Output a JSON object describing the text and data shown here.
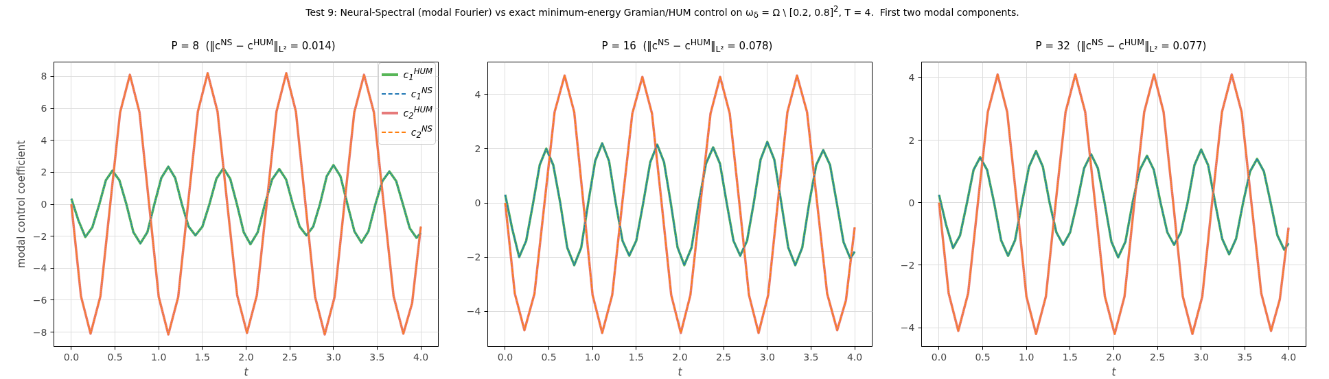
{
  "chart_data": [
    {
      "type": "line",
      "title": "P = 8  (‖c$^{NS}$ − c$^{HUM}$‖$_{L²}$ = 0.014)",
      "xlabel": "t",
      "ylabel": "modal control coefficient",
      "annotations": [
        "Test 9: Neural-Spectral (modal Fourier) vs exact minimum-energy Gramian/HUM control on ω$_{δ}$ = Ω \\ [0.2, 0.8]$^{2}$, T = 4.  First two modal components."
      ],
      "xlim": [
        -0.2,
        4.2
      ],
      "xticks": [
        {
          "value": 0,
          "label": "0.0"
        },
        0.5,
        {
          "value": 1,
          "label": "1.0"
        },
        1.5,
        {
          "value": 2,
          "label": "2.0"
        },
        2.5,
        {
          "value": 3,
          "label": "3.0"
        },
        3.5,
        {
          "value": 4,
          "label": "4.0"
        }
      ],
      "ylim": [
        -8.9,
        8.9
      ],
      "yticks": [
        -8,
        -6,
        -4,
        -2,
        0,
        2,
        4,
        6,
        8
      ],
      "grid": true,
      "legend": "top right",
      "series": [
        {
          "name": "c$_{1}$$^{HUM}$",
          "color": "#58b658",
          "line_style": "solid",
          "x": [
            0,
            0.08,
            0.16,
            0.24,
            0.32,
            0.395,
            0.47,
            0.55,
            0.63,
            0.71,
            0.79,
            0.87,
            0.95,
            1.03,
            1.11,
            1.188,
            1.265,
            1.343,
            1.42,
            1.5,
            1.58,
            1.66,
            1.74,
            1.818,
            1.895,
            1.973,
            2.05,
            2.133,
            2.215,
            2.298,
            2.38,
            2.458,
            2.535,
            2.613,
            2.69,
            2.768,
            2.845,
            2.923,
            3.0,
            3.08,
            3.16,
            3.24,
            3.32,
            3.4,
            3.48,
            3.56,
            3.64,
            3.718,
            3.795,
            3.873,
            3.95,
            4.0
          ],
          "values": [
            0.35,
            -1.0,
            -2.05,
            -1.45,
            0,
            1.5,
            2.1,
            1.5,
            0,
            -1.75,
            -2.45,
            -1.75,
            0,
            1.65,
            2.35,
            1.65,
            0,
            -1.4,
            -1.95,
            -1.4,
            0,
            1.6,
            2.25,
            1.6,
            0,
            -1.75,
            -2.5,
            -1.75,
            0,
            1.55,
            2.2,
            1.55,
            0,
            -1.4,
            -1.95,
            -1.4,
            0,
            1.75,
            2.45,
            1.75,
            0,
            -1.7,
            -2.4,
            -1.7,
            0,
            1.45,
            2.05,
            1.45,
            0,
            -1.5,
            -2.1,
            -1.8
          ]
        },
        {
          "name": "c$_{1}$$^{NS}$",
          "color": "#1f77b4",
          "line_style": "dashed",
          "x": [
            0,
            0.08,
            0.16,
            0.24,
            0.32,
            0.395,
            0.47,
            0.55,
            0.63,
            0.71,
            0.79,
            0.87,
            0.95,
            1.03,
            1.11,
            1.188,
            1.265,
            1.343,
            1.42,
            1.5,
            1.58,
            1.66,
            1.74,
            1.818,
            1.895,
            1.973,
            2.05,
            2.133,
            2.215,
            2.298,
            2.38,
            2.458,
            2.535,
            2.613,
            2.69,
            2.768,
            2.845,
            2.923,
            3.0,
            3.08,
            3.16,
            3.24,
            3.32,
            3.4,
            3.48,
            3.56,
            3.64,
            3.718,
            3.795,
            3.873,
            3.95,
            4.0
          ],
          "values": [
            0.35,
            -1.0,
            -2.05,
            -1.45,
            0,
            1.5,
            2.1,
            1.5,
            0,
            -1.75,
            -2.45,
            -1.75,
            0,
            1.65,
            2.35,
            1.65,
            0,
            -1.4,
            -1.95,
            -1.4,
            0,
            1.6,
            2.25,
            1.6,
            0,
            -1.75,
            -2.5,
            -1.75,
            0,
            1.55,
            2.2,
            1.55,
            0,
            -1.4,
            -1.95,
            -1.4,
            0,
            1.75,
            2.45,
            1.75,
            0,
            -1.7,
            -2.4,
            -1.7,
            0,
            1.45,
            2.05,
            1.45,
            0,
            -1.5,
            -2.1,
            -1.8
          ]
        },
        {
          "name": "c$_{2}$$^{HUM}$",
          "color": "#e67a7a",
          "line_style": "solid",
          "x": [
            0,
            0.11,
            0.22,
            0.333,
            0.445,
            0.558,
            0.67,
            0.78,
            0.89,
            1.0,
            1.11,
            1.223,
            1.335,
            1.448,
            1.56,
            1.673,
            1.785,
            1.898,
            2.01,
            2.123,
            2.235,
            2.348,
            2.46,
            2.57,
            2.68,
            2.79,
            2.9,
            3.013,
            3.125,
            3.238,
            3.35,
            3.463,
            3.575,
            3.688,
            3.8,
            3.9,
            4.0
          ],
          "values": [
            0,
            -5.75,
            -8.1,
            -5.75,
            0,
            5.75,
            8.1,
            5.75,
            0,
            -5.8,
            -8.15,
            -5.8,
            0,
            5.8,
            8.2,
            5.8,
            0,
            -5.7,
            -8.05,
            -5.7,
            0,
            5.8,
            8.2,
            5.8,
            0,
            -5.8,
            -8.15,
            -5.8,
            0,
            5.75,
            8.1,
            5.75,
            0,
            -5.75,
            -8.1,
            -6.2,
            -1.4
          ]
        },
        {
          "name": "c$_{2}$$^{NS}$",
          "color": "#ff7f0e",
          "line_style": "dashed",
          "x": [
            0,
            0.11,
            0.22,
            0.333,
            0.445,
            0.558,
            0.67,
            0.78,
            0.89,
            1.0,
            1.11,
            1.223,
            1.335,
            1.448,
            1.56,
            1.673,
            1.785,
            1.898,
            2.01,
            2.123,
            2.235,
            2.348,
            2.46,
            2.57,
            2.68,
            2.79,
            2.9,
            3.013,
            3.125,
            3.238,
            3.35,
            3.463,
            3.575,
            3.688,
            3.8,
            3.9,
            4.0
          ],
          "values": [
            0,
            -5.75,
            -8.1,
            -5.75,
            0,
            5.75,
            8.1,
            5.75,
            0,
            -5.8,
            -8.15,
            -5.8,
            0,
            5.8,
            8.2,
            5.8,
            0,
            -5.7,
            -8.05,
            -5.7,
            0,
            5.8,
            8.2,
            5.8,
            0,
            -5.8,
            -8.15,
            -5.8,
            0,
            5.75,
            8.1,
            5.75,
            0,
            -5.75,
            -8.1,
            -6.2,
            -1.4
          ]
        }
      ]
    },
    {
      "type": "line",
      "title": "P = 16  (‖c$^{NS}$ − c$^{HUM}$‖$_{L²}$ = 0.078)",
      "xlabel": "t",
      "xlim": [
        -0.2,
        4.2
      ],
      "xticks": [
        {
          "value": 0,
          "label": "0.0"
        },
        0.5,
        {
          "value": 1,
          "label": "1.0"
        },
        1.5,
        {
          "value": 2,
          "label": "2.0"
        },
        2.5,
        {
          "value": 3,
          "label": "3.0"
        },
        3.5,
        {
          "value": 4,
          "label": "4.0"
        }
      ],
      "ylim": [
        -5.3,
        5.2
      ],
      "yticks": [
        -4,
        -2,
        0,
        2,
        4
      ],
      "grid": true,
      "series": [
        {
          "color": "#58b658",
          "line_style": "solid",
          "x": [
            0,
            0.08,
            0.16,
            0.24,
            0.32,
            0.395,
            0.47,
            0.55,
            0.63,
            0.71,
            0.79,
            0.87,
            0.95,
            1.03,
            1.11,
            1.188,
            1.265,
            1.343,
            1.42,
            1.5,
            1.58,
            1.66,
            1.74,
            1.818,
            1.895,
            1.973,
            2.05,
            2.133,
            2.215,
            2.298,
            2.38,
            2.458,
            2.535,
            2.613,
            2.69,
            2.768,
            2.845,
            2.923,
            3.0,
            3.08,
            3.16,
            3.24,
            3.32,
            3.4,
            3.48,
            3.56,
            3.64,
            3.718,
            3.795,
            3.873,
            3.95,
            4.0
          ],
          "values": [
            0.3,
            -0.95,
            -2.0,
            -1.4,
            0,
            1.4,
            2.0,
            1.4,
            0,
            -1.65,
            -2.3,
            -1.65,
            0,
            1.55,
            2.2,
            1.55,
            0,
            -1.4,
            -1.95,
            -1.4,
            0,
            1.5,
            2.15,
            1.5,
            0,
            -1.65,
            -2.3,
            -1.65,
            0,
            1.45,
            2.05,
            1.45,
            0,
            -1.4,
            -1.95,
            -1.4,
            0,
            1.6,
            2.25,
            1.6,
            0,
            -1.65,
            -2.3,
            -1.65,
            0,
            1.4,
            1.95,
            1.4,
            0,
            -1.45,
            -2.05,
            -1.8
          ]
        },
        {
          "color": "#1f77b4",
          "line_style": "dashed",
          "x": [
            0,
            0.08,
            0.16,
            0.24,
            0.32,
            0.395,
            0.47,
            0.55,
            0.63,
            0.71,
            0.79,
            0.87,
            0.95,
            1.03,
            1.11,
            1.188,
            1.265,
            1.343,
            1.42,
            1.5,
            1.58,
            1.66,
            1.74,
            1.818,
            1.895,
            1.973,
            2.05,
            2.133,
            2.215,
            2.298,
            2.38,
            2.458,
            2.535,
            2.613,
            2.69,
            2.768,
            2.845,
            2.923,
            3.0,
            3.08,
            3.16,
            3.24,
            3.32,
            3.4,
            3.48,
            3.56,
            3.64,
            3.718,
            3.795,
            3.873,
            3.95,
            4.0
          ],
          "values": [
            0.3,
            -0.95,
            -2.0,
            -1.4,
            0,
            1.4,
            2.0,
            1.4,
            0,
            -1.65,
            -2.3,
            -1.65,
            0,
            1.55,
            2.2,
            1.55,
            0,
            -1.4,
            -1.95,
            -1.4,
            0,
            1.5,
            2.15,
            1.5,
            0,
            -1.65,
            -2.3,
            -1.65,
            0,
            1.45,
            2.05,
            1.45,
            0,
            -1.4,
            -1.95,
            -1.4,
            0,
            1.6,
            2.25,
            1.6,
            0,
            -1.65,
            -2.3,
            -1.65,
            0,
            1.4,
            1.95,
            1.4,
            0,
            -1.45,
            -2.05,
            -1.8
          ]
        },
        {
          "color": "#e67a7a",
          "line_style": "solid",
          "x": [
            0,
            0.11,
            0.22,
            0.335,
            0.45,
            0.565,
            0.68,
            0.79,
            0.895,
            1.0,
            1.11,
            1.225,
            1.34,
            1.455,
            1.57,
            1.68,
            1.79,
            1.9,
            2.01,
            2.12,
            2.235,
            2.35,
            2.46,
            2.57,
            2.68,
            2.79,
            2.9,
            3.01,
            3.12,
            3.23,
            3.34,
            3.455,
            3.57,
            3.685,
            3.8,
            3.9,
            4.0
          ],
          "values": [
            0,
            -3.35,
            -4.7,
            -3.35,
            0,
            3.35,
            4.7,
            3.35,
            0,
            -3.4,
            -4.8,
            -3.4,
            0,
            3.3,
            4.65,
            3.3,
            0,
            -3.4,
            -4.8,
            -3.4,
            0,
            3.3,
            4.65,
            3.3,
            0,
            -3.4,
            -4.8,
            -3.4,
            0,
            3.35,
            4.7,
            3.35,
            0,
            -3.35,
            -4.7,
            -3.6,
            -0.9
          ]
        },
        {
          "color": "#ff7f0e",
          "line_style": "dashed",
          "x": [
            0,
            0.11,
            0.22,
            0.335,
            0.45,
            0.565,
            0.68,
            0.79,
            0.895,
            1.0,
            1.11,
            1.225,
            1.34,
            1.455,
            1.57,
            1.68,
            1.79,
            1.9,
            2.01,
            2.12,
            2.235,
            2.35,
            2.46,
            2.57,
            2.68,
            2.79,
            2.9,
            3.01,
            3.12,
            3.23,
            3.34,
            3.455,
            3.57,
            3.685,
            3.8,
            3.9,
            4.0
          ],
          "values": [
            0,
            -3.35,
            -4.7,
            -3.35,
            0,
            3.35,
            4.7,
            3.35,
            0,
            -3.4,
            -4.8,
            -3.4,
            0,
            3.3,
            4.65,
            3.3,
            0,
            -3.4,
            -4.8,
            -3.4,
            0,
            3.3,
            4.65,
            3.3,
            0,
            -3.4,
            -4.8,
            -3.4,
            0,
            3.35,
            4.7,
            3.35,
            0,
            -3.35,
            -4.7,
            -3.6,
            -0.9
          ]
        }
      ]
    },
    {
      "type": "line",
      "title": "P = 32  (‖c$^{NS}$ − c$^{HUM}$‖$_{L²}$ = 0.077)",
      "xlabel": "t",
      "xlim": [
        -0.2,
        4.2
      ],
      "xticks": [
        {
          "value": 0,
          "label": "0.0"
        },
        0.5,
        {
          "value": 1,
          "label": "1.0"
        },
        1.5,
        {
          "value": 2,
          "label": "2.0"
        },
        2.5,
        {
          "value": 3,
          "label": "3.0"
        },
        3.5,
        {
          "value": 4,
          "label": "4.0"
        }
      ],
      "ylim": [
        -4.6,
        4.5
      ],
      "yticks": [
        -4,
        -2,
        0,
        2,
        4
      ],
      "grid": true,
      "series": [
        {
          "color": "#58b658",
          "line_style": "solid",
          "x": [
            0,
            0.08,
            0.16,
            0.24,
            0.32,
            0.395,
            0.47,
            0.55,
            0.63,
            0.71,
            0.79,
            0.87,
            0.95,
            1.03,
            1.11,
            1.188,
            1.265,
            1.343,
            1.42,
            1.5,
            1.58,
            1.66,
            1.74,
            1.818,
            1.895,
            1.973,
            2.05,
            2.133,
            2.215,
            2.298,
            2.38,
            2.458,
            2.535,
            2.613,
            2.69,
            2.768,
            2.845,
            2.923,
            3.0,
            3.08,
            3.16,
            3.24,
            3.32,
            3.4,
            3.48,
            3.56,
            3.64,
            3.718,
            3.795,
            3.873,
            3.95,
            4.0
          ],
          "values": [
            0.25,
            -0.7,
            -1.45,
            -1.05,
            0,
            1.05,
            1.45,
            1.05,
            0,
            -1.2,
            -1.7,
            -1.2,
            0,
            1.15,
            1.65,
            1.15,
            0,
            -0.95,
            -1.35,
            -0.95,
            0,
            1.1,
            1.55,
            1.1,
            0,
            -1.25,
            -1.75,
            -1.25,
            0,
            1.05,
            1.5,
            1.05,
            0,
            -0.95,
            -1.35,
            -0.95,
            0,
            1.2,
            1.7,
            1.2,
            0,
            -1.15,
            -1.65,
            -1.15,
            0,
            1.0,
            1.4,
            1.0,
            0,
            -1.05,
            -1.5,
            -1.3
          ]
        },
        {
          "color": "#1f77b4",
          "line_style": "dashed",
          "x": [
            0,
            0.08,
            0.16,
            0.24,
            0.32,
            0.395,
            0.47,
            0.55,
            0.63,
            0.71,
            0.79,
            0.87,
            0.95,
            1.03,
            1.11,
            1.188,
            1.265,
            1.343,
            1.42,
            1.5,
            1.58,
            1.66,
            1.74,
            1.818,
            1.895,
            1.973,
            2.05,
            2.133,
            2.215,
            2.298,
            2.38,
            2.458,
            2.535,
            2.613,
            2.69,
            2.768,
            2.845,
            2.923,
            3.0,
            3.08,
            3.16,
            3.24,
            3.32,
            3.4,
            3.48,
            3.56,
            3.64,
            3.718,
            3.795,
            3.873,
            3.95,
            4.0
          ],
          "values": [
            0.25,
            -0.7,
            -1.45,
            -1.05,
            0,
            1.05,
            1.45,
            1.05,
            0,
            -1.2,
            -1.7,
            -1.2,
            0,
            1.15,
            1.65,
            1.15,
            0,
            -0.95,
            -1.35,
            -0.95,
            0,
            1.1,
            1.55,
            1.1,
            0,
            -1.25,
            -1.75,
            -1.25,
            0,
            1.05,
            1.5,
            1.05,
            0,
            -0.95,
            -1.35,
            -0.95,
            0,
            1.2,
            1.7,
            1.2,
            0,
            -1.15,
            -1.65,
            -1.15,
            0,
            1.0,
            1.4,
            1.0,
            0,
            -1.05,
            -1.5,
            -1.3
          ]
        },
        {
          "color": "#e67a7a",
          "line_style": "solid",
          "x": [
            0,
            0.11,
            0.22,
            0.333,
            0.445,
            0.558,
            0.67,
            0.78,
            0.89,
            1.0,
            1.11,
            1.223,
            1.335,
            1.448,
            1.56,
            1.673,
            1.785,
            1.898,
            2.01,
            2.123,
            2.235,
            2.348,
            2.46,
            2.57,
            2.68,
            2.79,
            2.9,
            3.013,
            3.125,
            3.238,
            3.35,
            3.463,
            3.575,
            3.688,
            3.8,
            3.9,
            4.0
          ],
          "values": [
            0,
            -2.9,
            -4.1,
            -2.9,
            0,
            2.9,
            4.1,
            2.9,
            0,
            -3.0,
            -4.2,
            -3.0,
            0,
            2.9,
            4.1,
            2.9,
            0,
            -3.0,
            -4.2,
            -3.0,
            0,
            2.9,
            4.1,
            2.9,
            0,
            -3.0,
            -4.2,
            -3.0,
            0,
            2.9,
            4.1,
            2.9,
            0,
            -2.9,
            -4.1,
            -3.1,
            -0.8
          ]
        },
        {
          "color": "#ff7f0e",
          "line_style": "dashed",
          "x": [
            0,
            0.11,
            0.22,
            0.333,
            0.445,
            0.558,
            0.67,
            0.78,
            0.89,
            1.0,
            1.11,
            1.223,
            1.335,
            1.448,
            1.56,
            1.673,
            1.785,
            1.898,
            2.01,
            2.123,
            2.235,
            2.348,
            2.46,
            2.57,
            2.68,
            2.79,
            2.9,
            3.013,
            3.125,
            3.238,
            3.35,
            3.463,
            3.575,
            3.688,
            3.8,
            3.9,
            4.0
          ],
          "values": [
            0,
            -2.9,
            -4.1,
            -2.9,
            0,
            2.9,
            4.1,
            2.9,
            0,
            -3.0,
            -4.2,
            -3.0,
            0,
            2.9,
            4.1,
            2.9,
            0,
            -3.0,
            -4.2,
            -3.0,
            0,
            2.9,
            4.1,
            2.9,
            0,
            -3.0,
            -4.2,
            -3.0,
            0,
            2.9,
            4.1,
            2.9,
            0,
            -2.9,
            -4.1,
            -3.1,
            -0.8
          ]
        }
      ]
    }
  ]
}
